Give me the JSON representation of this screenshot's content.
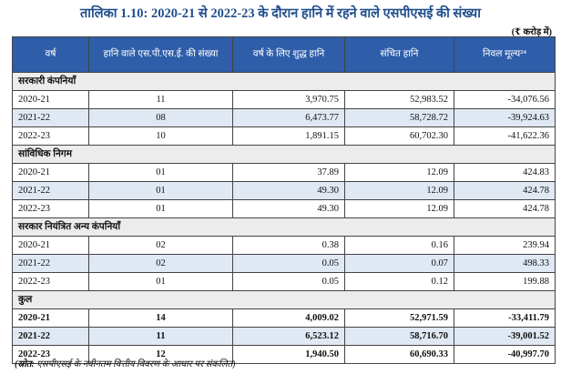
{
  "title": "तालिका 1.10: 2020-21 से 2022-23 के दौरान हानि में रहने वाले एसपीएसई की संख्या",
  "unit": "(₹ करोड़ में)",
  "headers": [
    "वर्ष",
    "हानि वाले एस.पी.एस.ई. की संख्या",
    "वर्ष के लिए शुद्ध हानि",
    "संचित हानि",
    "निवल मूल्य²⁴"
  ],
  "sections": [
    {
      "name": "सरकारी कंपनियाँ",
      "rows": [
        {
          "year": "2020-21",
          "count": "11",
          "net_loss": "3,970.75",
          "acc_loss": "52,983.52",
          "net_worth": "-34,076.56"
        },
        {
          "year": "2021-22",
          "count": "08",
          "net_loss": "6,473.77",
          "acc_loss": "58,728.72",
          "net_worth": "-39,924.63"
        },
        {
          "year": "2022-23",
          "count": "10",
          "net_loss": "1,891.15",
          "acc_loss": "60,702.30",
          "net_worth": "-41,622.36"
        }
      ]
    },
    {
      "name": "सांविधिक निगम",
      "rows": [
        {
          "year": "2020-21",
          "count": "01",
          "net_loss": "37.89",
          "acc_loss": "12.09",
          "net_worth": "424.83"
        },
        {
          "year": "2021-22",
          "count": "01",
          "net_loss": "49.30",
          "acc_loss": "12.09",
          "net_worth": "424.78"
        },
        {
          "year": "2022-23",
          "count": "01",
          "net_loss": "49.30",
          "acc_loss": "12.09",
          "net_worth": "424.78"
        }
      ]
    },
    {
      "name": "सरकार नियंत्रित अन्य कंपनियाँ",
      "rows": [
        {
          "year": "2020-21",
          "count": "02",
          "net_loss": "0.38",
          "acc_loss": "0.16",
          "net_worth": "239.94"
        },
        {
          "year": "2021-22",
          "count": "02",
          "net_loss": "0.05",
          "acc_loss": "0.07",
          "net_worth": "498.33"
        },
        {
          "year": "2022-23",
          "count": "01",
          "net_loss": "0.05",
          "acc_loss": "0.12",
          "net_worth": "199.88"
        }
      ]
    },
    {
      "name": "कुल",
      "rows": [
        {
          "year": "2020-21",
          "count": "14",
          "net_loss": "4,009.02",
          "acc_loss": "52,971.59",
          "net_worth": "-33,411.79"
        },
        {
          "year": "2021-22",
          "count": "11",
          "net_loss": "6,523.12",
          "acc_loss": "58,716.70",
          "net_worth": "-39,001.52"
        },
        {
          "year": "2022-23",
          "count": "12",
          "net_loss": "1,940.50",
          "acc_loss": "60,690.33",
          "net_worth": "-40,997.70"
        }
      ]
    }
  ],
  "source_label": "(स्रोत:",
  "source_text": " एसपीएसई के नवीनतम वित्तीय विवरण के आधार पर संकलित)"
}
